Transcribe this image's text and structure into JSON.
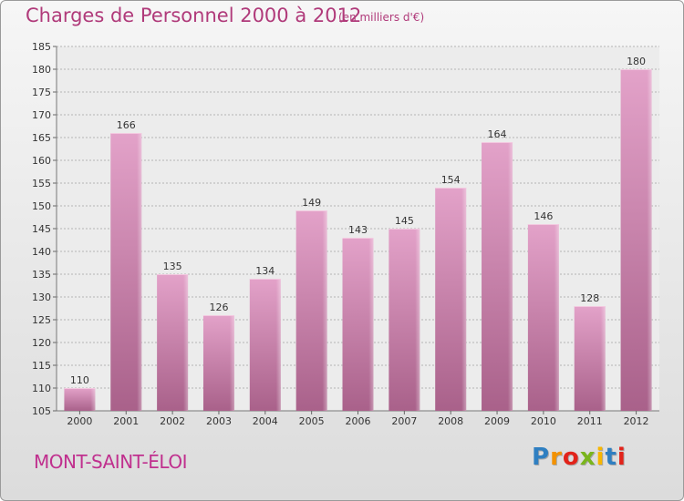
{
  "header": {
    "title": "Charges de Personnel 2000 à 2012",
    "unit_note": "(en milliers d'€)"
  },
  "footer": {
    "commune": "MONT-SAINT-ÉLOI",
    "logo": [
      "P",
      "r",
      "o",
      "x",
      "i",
      "t",
      "i"
    ]
  },
  "colors": {
    "bar": "#d98ab8",
    "bar_dark": "#b2648f",
    "title": "#b03a7a",
    "grid": "#b5b5b5"
  },
  "chart_data": {
    "type": "bar",
    "title": "Charges de Personnel 2000 à 2012",
    "xlabel": "",
    "ylabel": "",
    "categories": [
      "2000",
      "2001",
      "2002",
      "2003",
      "2004",
      "2005",
      "2006",
      "2007",
      "2008",
      "2009",
      "2010",
      "2011",
      "2012"
    ],
    "values": [
      110,
      166,
      135,
      126,
      134,
      149,
      143,
      145,
      154,
      164,
      146,
      128,
      180
    ],
    "ylim": [
      105,
      185
    ],
    "yticks": [
      105,
      110,
      115,
      120,
      125,
      130,
      135,
      140,
      145,
      150,
      155,
      160,
      165,
      170,
      175,
      180,
      185
    ],
    "grid": true,
    "data_labels": true
  }
}
